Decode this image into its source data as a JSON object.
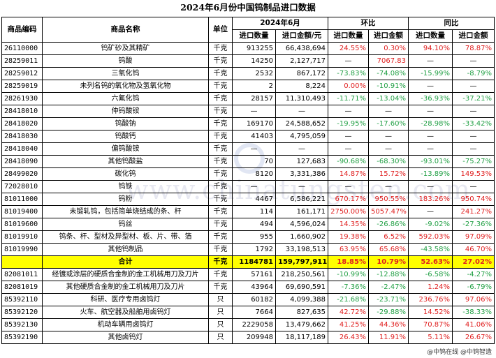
{
  "title": "2024年6月份中国钨制品进口数据",
  "header": {
    "code": "商品编码",
    "name": "商品名称",
    "unit": "单位",
    "period": "2024年6月",
    "mom": "环比",
    "yoy": "同比",
    "qty": "进口数量",
    "amt": "进口金额/元",
    "mom_qty": "进口数量",
    "mom_amt": "进口金额",
    "yoy_qty": "进口数量",
    "yoy_amt": "进口金额"
  },
  "rows": [
    {
      "code": "26110000",
      "name": "钨矿砂及其精矿",
      "unit": "千克",
      "qty": "913255",
      "amt": "66,438,694",
      "mom_qty": "24.55%",
      "mom_amt": "0.30%",
      "yoy_qty": "94.10%",
      "yoy_amt": "78.87%"
    },
    {
      "code": "28259011",
      "name": "钨酸",
      "unit": "千克",
      "qty": "14250",
      "amt": "2,127,717",
      "mom_qty": "—",
      "mom_amt": "7067.83",
      "yoy_qty": "—",
      "yoy_amt": "—"
    },
    {
      "code": "28259012",
      "name": "三氧化钨",
      "unit": "千克",
      "qty": "2532",
      "amt": "867,172",
      "mom_qty": "-73.83%",
      "mom_amt": "-74.08%",
      "yoy_qty": "-15.99%",
      "yoy_amt": "-8.79%"
    },
    {
      "code": "28259019",
      "name": "未列名钨的氧化物及氢氧化物",
      "unit": "千克",
      "qty": "2",
      "amt": "8,224",
      "mom_qty": "0.00%",
      "mom_amt": "-10.91%",
      "yoy_qty": "—",
      "yoy_amt": "—"
    },
    {
      "code": "28261930",
      "name": "六氟化钨",
      "unit": "千克",
      "qty": "28157",
      "amt": "11,310,493",
      "mom_qty": "-11.71%",
      "mom_amt": "-13.04%",
      "yoy_qty": "-36.93%",
      "yoy_amt": "-37.21%"
    },
    {
      "code": "28418010",
      "name": "仲钨酸铵",
      "unit": "千克",
      "qty": "—",
      "amt": "—",
      "mom_qty": "—",
      "mom_amt": "—",
      "yoy_qty": "—",
      "yoy_amt": "—"
    },
    {
      "code": "28418020",
      "name": "钨酸钠",
      "unit": "千克",
      "qty": "169170",
      "amt": "24,588,652",
      "mom_qty": "-19.95%",
      "mom_amt": "-17.60%",
      "yoy_qty": "-28.98%",
      "yoy_amt": "-33.42%"
    },
    {
      "code": "28418030",
      "name": "钨酸钙",
      "unit": "千克",
      "qty": "41403",
      "amt": "4,795,059",
      "mom_qty": "—",
      "mom_amt": "—",
      "yoy_qty": "—",
      "yoy_amt": "—"
    },
    {
      "code": "28418040",
      "name": "偏钨酸铵",
      "unit": "千克",
      "qty": "—",
      "amt": "—",
      "mom_qty": "—",
      "mom_amt": "—",
      "yoy_qty": "—",
      "yoy_amt": "—"
    },
    {
      "code": "28418090",
      "name": "其他钨酸盐",
      "unit": "千克",
      "qty": "70",
      "amt": "127,683",
      "mom_qty": "-90.68%",
      "mom_amt": "-68.30%",
      "yoy_qty": "-93.01%",
      "yoy_amt": "-75.27%"
    },
    {
      "code": "28499020",
      "name": "碳化钨",
      "unit": "千克",
      "qty": "8120",
      "amt": "3,331,386",
      "mom_qty": "14.87%",
      "mom_amt": "15.72%",
      "yoy_qty": "-13.89%",
      "yoy_amt": "149.53%"
    },
    {
      "code": "72028010",
      "name": "钨铁",
      "unit": "千克",
      "qty": "—",
      "amt": "—",
      "mom_qty": "—",
      "mom_amt": "—",
      "yoy_qty": "—",
      "yoy_amt": "—"
    },
    {
      "code": "81011000",
      "name": "钨粉",
      "unit": "千克",
      "qty": "4467",
      "amt": "6,586,221",
      "mom_qty": "670.17%",
      "mom_amt": "950.55%",
      "yoy_qty": "183.26%",
      "yoy_amt": "950.74%"
    },
    {
      "code": "81019400",
      "name": "未锻轧钨，包括简单烧结成的条、杆",
      "unit": "千克",
      "qty": "114",
      "amt": "161,171",
      "mom_qty": "2750.00%",
      "mom_amt": "5057.47%",
      "yoy_qty": "—",
      "yoy_amt": "241.27%"
    },
    {
      "code": "81019600",
      "name": "钨丝",
      "unit": "千克",
      "qty": "494",
      "amt": "4,596,024",
      "mom_qty": "14.35%",
      "mom_amt": "-26.86%",
      "yoy_qty": "-9.02%",
      "yoy_amt": "-27.36%"
    },
    {
      "code": "81019910",
      "name": "钨条、杆、型材及异型材、板、片、带、箔",
      "unit": "千克",
      "qty": "955",
      "amt": "1,660,902",
      "mom_qty": "19.38%",
      "mom_amt": "6.52%",
      "yoy_qty": "592.03%",
      "yoy_amt": "97.09%"
    },
    {
      "code": "81019990",
      "name": "其他钨制品",
      "unit": "千克",
      "qty": "1792",
      "amt": "33,198,513",
      "mom_qty": "63.95%",
      "mom_amt": "65.68%",
      "yoy_qty": "-43.58%",
      "yoy_amt": "46.70%"
    },
    {
      "code": "",
      "name": "合计",
      "unit": "千克",
      "qty": "1184781",
      "amt": "159,797,911",
      "mom_qty": "18.85%",
      "mom_amt": "10.79%",
      "yoy_qty": "52.63%",
      "yoy_amt": "27.02%",
      "total": true
    },
    {
      "code": "82081011",
      "name": "经镀或涂层的硬质合金制的金工机械用刀及刀片",
      "unit": "千克",
      "qty": "57161",
      "amt": "218,250,561",
      "mom_qty": "-10.99%",
      "mom_amt": "-12.88%",
      "yoy_qty": "-6.58%",
      "yoy_amt": "-4.27%"
    },
    {
      "code": "82081019",
      "name": "其他硬质合金制的金工机械用刀及刀片",
      "unit": "千克",
      "qty": "43964",
      "amt": "69,690,591",
      "mom_qty": "-7.36%",
      "mom_amt": "-2.47%",
      "yoy_qty": "1.24%",
      "yoy_amt": "-6.79%"
    },
    {
      "code": "85392110",
      "name": "科研、医疗专用卤钨灯",
      "unit": "只",
      "qty": "60182",
      "amt": "4,099,388",
      "mom_qty": "-21.68%",
      "mom_amt": "-23.71%",
      "yoy_qty": "236.76%",
      "yoy_amt": "97.06%"
    },
    {
      "code": "85392120",
      "name": "火车、航空器及船舶用卤钨灯",
      "unit": "只",
      "qty": "7664",
      "amt": "827,635",
      "mom_qty": "42.72%",
      "mom_amt": "-29.88%",
      "yoy_qty": "14.52%",
      "yoy_amt": "-38.33%"
    },
    {
      "code": "85392130",
      "name": "机动车辆用卤钨灯",
      "unit": "只",
      "qty": "2229058",
      "amt": "13,479,662",
      "mom_qty": "41.25%",
      "mom_amt": "44.36%",
      "yoy_qty": "70.87%",
      "yoy_amt": "41.06%"
    },
    {
      "code": "85392190",
      "name": "其他卤钨灯",
      "unit": "只",
      "qty": "209948",
      "amt": "18,117,189",
      "mom_qty": "26.43%",
      "mom_amt": "11.91%",
      "yoy_qty": "5.11%",
      "yoy_amt": "26.67%"
    }
  ],
  "footer": "@中钨在线 @中钨智造",
  "watermark": "www.chinatungsten.com",
  "colors": {
    "positive": "#e02020",
    "negative": "#22a045",
    "total_bg": "#ffff00"
  }
}
